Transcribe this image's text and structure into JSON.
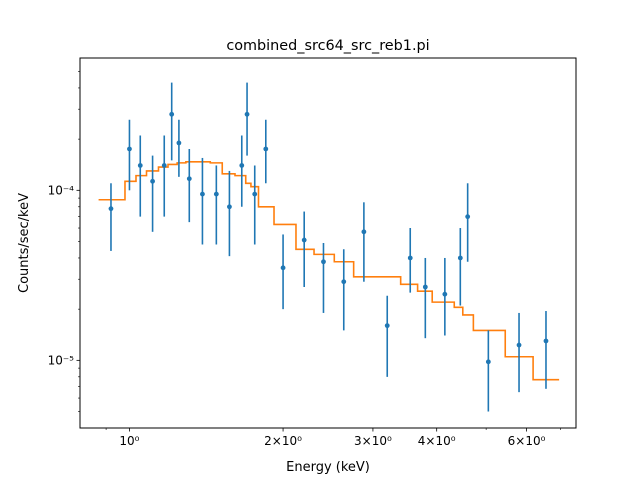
{
  "chart_data": {
    "type": "scatter",
    "title": "combined_src64_src_reb1.pi",
    "xlabel": "Energy (keV)",
    "ylabel": "Counts/sec/keV",
    "xscale": "log",
    "yscale": "log",
    "xlim": [
      0.8,
      7.5
    ],
    "ylim": [
      4e-06,
      0.0006
    ],
    "grid": false,
    "x_ticks": [
      {
        "value": 1,
        "label": "10⁰"
      },
      {
        "value": 2,
        "label": "2×10⁰"
      },
      {
        "value": 3,
        "label": "3×10⁰"
      },
      {
        "value": 4,
        "label": "4×10⁰"
      },
      {
        "value": 6,
        "label": "6×10⁰"
      }
    ],
    "x_minor_ticks": [
      0.9,
      5,
      7
    ],
    "y_ticks": [
      {
        "value": 1e-05,
        "label": "10⁻⁵"
      },
      {
        "value": 0.0001,
        "label": "10⁻⁴"
      }
    ],
    "y_minor_ticks": [
      5e-06,
      6e-06,
      7e-06,
      8e-06,
      9e-06,
      2e-05,
      3e-05,
      4e-05,
      5e-05,
      6e-05,
      7e-05,
      8e-05,
      9e-05,
      0.0002,
      0.0003,
      0.0004,
      0.0005
    ],
    "colors": {
      "data": "#1f77b4",
      "model": "#ff7f0e"
    },
    "series": [
      {
        "kind": "errorbar",
        "points": [
          {
            "x": 0.92,
            "y": 7.8e-05,
            "lo": 4.4e-05,
            "hi": 0.00011
          },
          {
            "x": 1.0,
            "y": 0.000175,
            "lo": 0.0001,
            "hi": 0.00026
          },
          {
            "x": 1.05,
            "y": 0.00014,
            "lo": 7e-05,
            "hi": 0.00021
          },
          {
            "x": 1.11,
            "y": 0.000113,
            "lo": 5.7e-05,
            "hi": 0.00016
          },
          {
            "x": 1.17,
            "y": 0.00014,
            "lo": 7e-05,
            "hi": 0.00021
          },
          {
            "x": 1.21,
            "y": 0.00028,
            "lo": 0.00015,
            "hi": 0.00043
          },
          {
            "x": 1.25,
            "y": 0.00019,
            "lo": 0.00012,
            "hi": 0.00026
          },
          {
            "x": 1.31,
            "y": 0.000117,
            "lo": 6.5e-05,
            "hi": 0.000175
          },
          {
            "x": 1.39,
            "y": 9.5e-05,
            "lo": 4.8e-05,
            "hi": 0.000155
          },
          {
            "x": 1.48,
            "y": 9.5e-05,
            "lo": 4.8e-05,
            "hi": 0.00014
          },
          {
            "x": 1.57,
            "y": 8e-05,
            "lo": 4.1e-05,
            "hi": 0.00013
          },
          {
            "x": 1.66,
            "y": 0.00014,
            "lo": 8e-05,
            "hi": 0.00021
          },
          {
            "x": 1.7,
            "y": 0.00028,
            "lo": 0.00016,
            "hi": 0.00043
          },
          {
            "x": 1.76,
            "y": 9.5e-05,
            "lo": 4.8e-05,
            "hi": 0.00014
          },
          {
            "x": 1.85,
            "y": 0.000175,
            "lo": 0.00011,
            "hi": 0.00026
          },
          {
            "x": 2.0,
            "y": 3.5e-05,
            "lo": 2e-05,
            "hi": 5.5e-05
          },
          {
            "x": 2.2,
            "y": 5.1e-05,
            "lo": 2.7e-05,
            "hi": 7.5e-05
          },
          {
            "x": 2.4,
            "y": 3.8e-05,
            "lo": 1.9e-05,
            "hi": 4.9e-05
          },
          {
            "x": 2.63,
            "y": 2.9e-05,
            "lo": 1.5e-05,
            "hi": 4.5e-05
          },
          {
            "x": 2.88,
            "y": 5.7e-05,
            "lo": 2.9e-05,
            "hi": 8.5e-05
          },
          {
            "x": 3.2,
            "y": 1.6e-05,
            "lo": 8e-06,
            "hi": 2.4e-05
          },
          {
            "x": 3.55,
            "y": 4e-05,
            "lo": 2.5e-05,
            "hi": 6e-05
          },
          {
            "x": 3.8,
            "y": 2.7e-05,
            "lo": 1.35e-05,
            "hi": 4e-05
          },
          {
            "x": 4.15,
            "y": 2.45e-05,
            "lo": 1.4e-05,
            "hi": 4e-05
          },
          {
            "x": 4.45,
            "y": 4e-05,
            "lo": 2.1e-05,
            "hi": 6e-05
          },
          {
            "x": 4.6,
            "y": 7e-05,
            "lo": 3.8e-05,
            "hi": 0.00011
          },
          {
            "x": 5.05,
            "y": 9.8e-06,
            "lo": 5e-06,
            "hi": 1.5e-05
          },
          {
            "x": 5.8,
            "y": 1.23e-05,
            "lo": 6.5e-06,
            "hi": 1.9e-05
          },
          {
            "x": 6.55,
            "y": 1.3e-05,
            "lo": 6.8e-06,
            "hi": 1.95e-05
          }
        ]
      },
      {
        "kind": "step",
        "edges": [
          0.87,
          0.98,
          1.03,
          1.08,
          1.14,
          1.19,
          1.24,
          1.29,
          1.35,
          1.44,
          1.52,
          1.61,
          1.69,
          1.73,
          1.79,
          1.92,
          2.12,
          2.3,
          2.52,
          2.75,
          3.02,
          3.4,
          3.67,
          3.92,
          4.33,
          4.5,
          4.72,
          5.45,
          6.18,
          6.95
        ],
        "values": [
          8.8e-05,
          0.000113,
          0.000122,
          0.00013,
          0.000137,
          0.000142,
          0.000145,
          0.000147,
          0.000147,
          0.000145,
          0.000125,
          0.000122,
          0.00011,
          0.000105,
          8e-05,
          6.3e-05,
          4.5e-05,
          4.2e-05,
          3.8e-05,
          3.1e-05,
          3.1e-05,
          2.8e-05,
          2.55e-05,
          2.2e-05,
          2.05e-05,
          1.85e-05,
          1.5e-05,
          1.05e-05,
          7.7e-06
        ]
      }
    ]
  }
}
